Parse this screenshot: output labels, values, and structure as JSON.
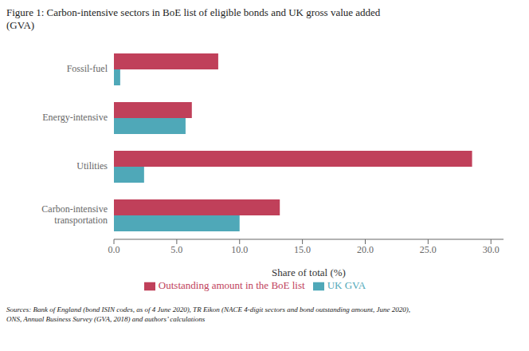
{
  "chart_data": {
    "type": "bar",
    "orientation": "horizontal",
    "title": "Figure 1: Carbon-intensive sectors in BoE list of eligible bonds and UK gross value added\n(GVA)",
    "annotations": [
      "Sources: Bank of England (bond ISIN codes, as of 4 June 2020), TR Eikon (NACE 4-digit sectors and bond outstanding amount, June 2020),\nONS, Annual Business Survey (GVA, 2018) and authors’ calculations"
    ],
    "xlabel": "Share of total (%)",
    "categories": [
      "Carbon-intensive\ntransportation",
      "Utilities",
      "Energy-intensive",
      "Fossil-fuel"
    ],
    "series": [
      {
        "name": "Outstanding amount in the BoE list",
        "color": "#c0405a",
        "values": [
          13.2,
          28.5,
          6.2,
          8.3
        ]
      },
      {
        "name": "UK GVA",
        "color": "#4fa8b8",
        "values": [
          10.0,
          2.4,
          5.7,
          0.5
        ]
      }
    ],
    "xlim": [
      0,
      31
    ],
    "xticks": [
      {
        "value": 0,
        "label": "0.0"
      },
      {
        "value": 5,
        "label": "5.0"
      },
      {
        "value": 10,
        "label": "10.0"
      },
      {
        "value": 15,
        "label": "15.0"
      },
      {
        "value": 20,
        "label": "20.0"
      },
      {
        "value": 25,
        "label": "25.0"
      },
      {
        "value": 30,
        "label": "30.0"
      }
    ],
    "grid": false,
    "legend": "bottom"
  }
}
